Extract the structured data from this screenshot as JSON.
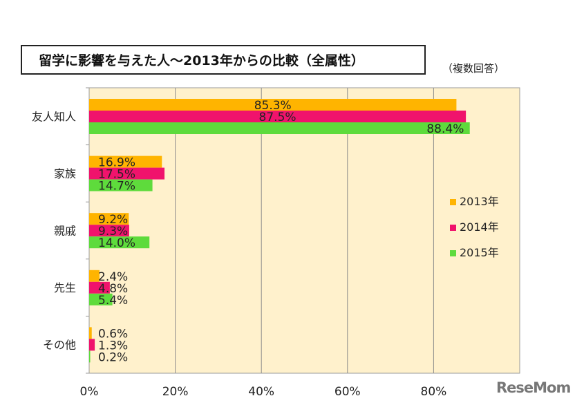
{
  "title": "留学に影響を与えた人～2013年からの比較（全属性）",
  "note": "（複数回答）",
  "watermark": "ReseMom",
  "chart_data": {
    "type": "bar",
    "orientation": "horizontal",
    "categories": [
      "友人知人",
      "家族",
      "親戚",
      "先生",
      "その他"
    ],
    "series": [
      {
        "name": "2013年",
        "color": "#FFB400",
        "values": [
          85.3,
          16.9,
          9.2,
          2.4,
          0.6
        ]
      },
      {
        "name": "2014年",
        "color": "#F0136C",
        "values": [
          87.5,
          17.5,
          9.3,
          4.8,
          1.3
        ]
      },
      {
        "name": "2015年",
        "color": "#5EDB3C",
        "values": [
          88.4,
          14.7,
          14.0,
          5.4,
          0.2
        ]
      }
    ],
    "x_ticks": [
      "0%",
      "20%",
      "40%",
      "60%",
      "80%"
    ],
    "xlim": [
      0,
      100
    ],
    "grid": true,
    "legend_position": "right",
    "plot_background": "#FFF1CC"
  }
}
